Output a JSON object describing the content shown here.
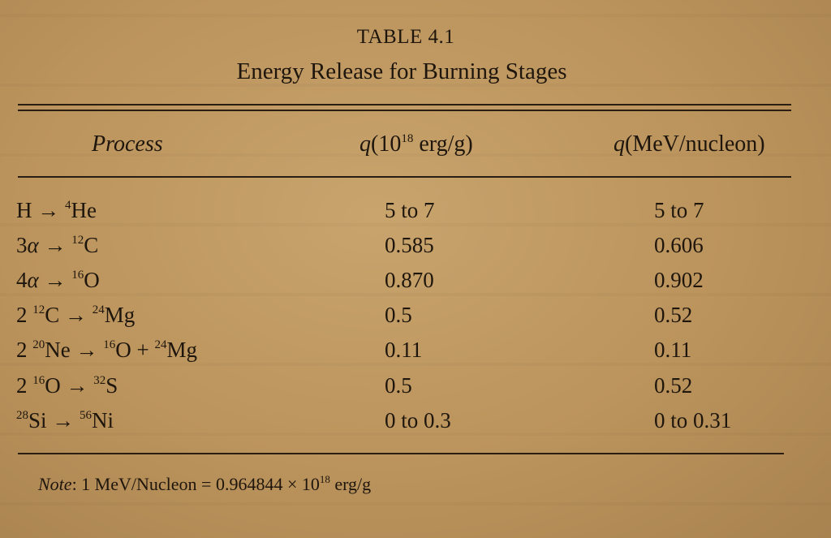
{
  "table": {
    "label": "TABLE 4.1",
    "title": "Energy Release for Burning Stages",
    "headers": {
      "process": "Process",
      "q_erg": {
        "pre": "q(10",
        "sup": "18",
        "post": " erg/g)"
      },
      "q_mev": "q(MeV/nucleon)"
    },
    "rows": [
      {
        "process": [
          {
            "t": "H → "
          },
          {
            "s": "4"
          },
          {
            "t": "He"
          }
        ],
        "q_erg": "5 to 7",
        "q_mev": "5 to 7"
      },
      {
        "process": [
          {
            "t": "3α → "
          },
          {
            "s": "12"
          },
          {
            "t": "C"
          }
        ],
        "q_erg": "0.585",
        "q_mev": "0.606"
      },
      {
        "process": [
          {
            "t": "4α → "
          },
          {
            "s": "16"
          },
          {
            "t": "O"
          }
        ],
        "q_erg": "0.870",
        "q_mev": "0.902"
      },
      {
        "process": [
          {
            "t": "2 "
          },
          {
            "s": "12"
          },
          {
            "t": "C → "
          },
          {
            "s": "24"
          },
          {
            "t": "Mg"
          }
        ],
        "q_erg": "0.5",
        "q_mev": "0.52"
      },
      {
        "process": [
          {
            "t": "2 "
          },
          {
            "s": "20"
          },
          {
            "t": "Ne → "
          },
          {
            "s": "16"
          },
          {
            "t": "O + "
          },
          {
            "s": "24"
          },
          {
            "t": "Mg"
          }
        ],
        "q_erg": "0.11",
        "q_mev": "0.11"
      },
      {
        "process": [
          {
            "t": "2 "
          },
          {
            "s": "16"
          },
          {
            "t": "O → "
          },
          {
            "s": "32"
          },
          {
            "t": "S"
          }
        ],
        "q_erg": "0.5",
        "q_mev": "0.52"
      },
      {
        "process": [
          {
            "s": "28"
          },
          {
            "t": "Si → "
          },
          {
            "s": "56"
          },
          {
            "t": "Ni"
          }
        ],
        "q_erg": "0 to 0.3",
        "q_mev": "0 to 0.31"
      }
    ],
    "note": {
      "label": "Note",
      "pre": ": 1 MeV/Nucleon = 0.964844 × 10",
      "sup": "18",
      "post": " erg/g"
    }
  }
}
